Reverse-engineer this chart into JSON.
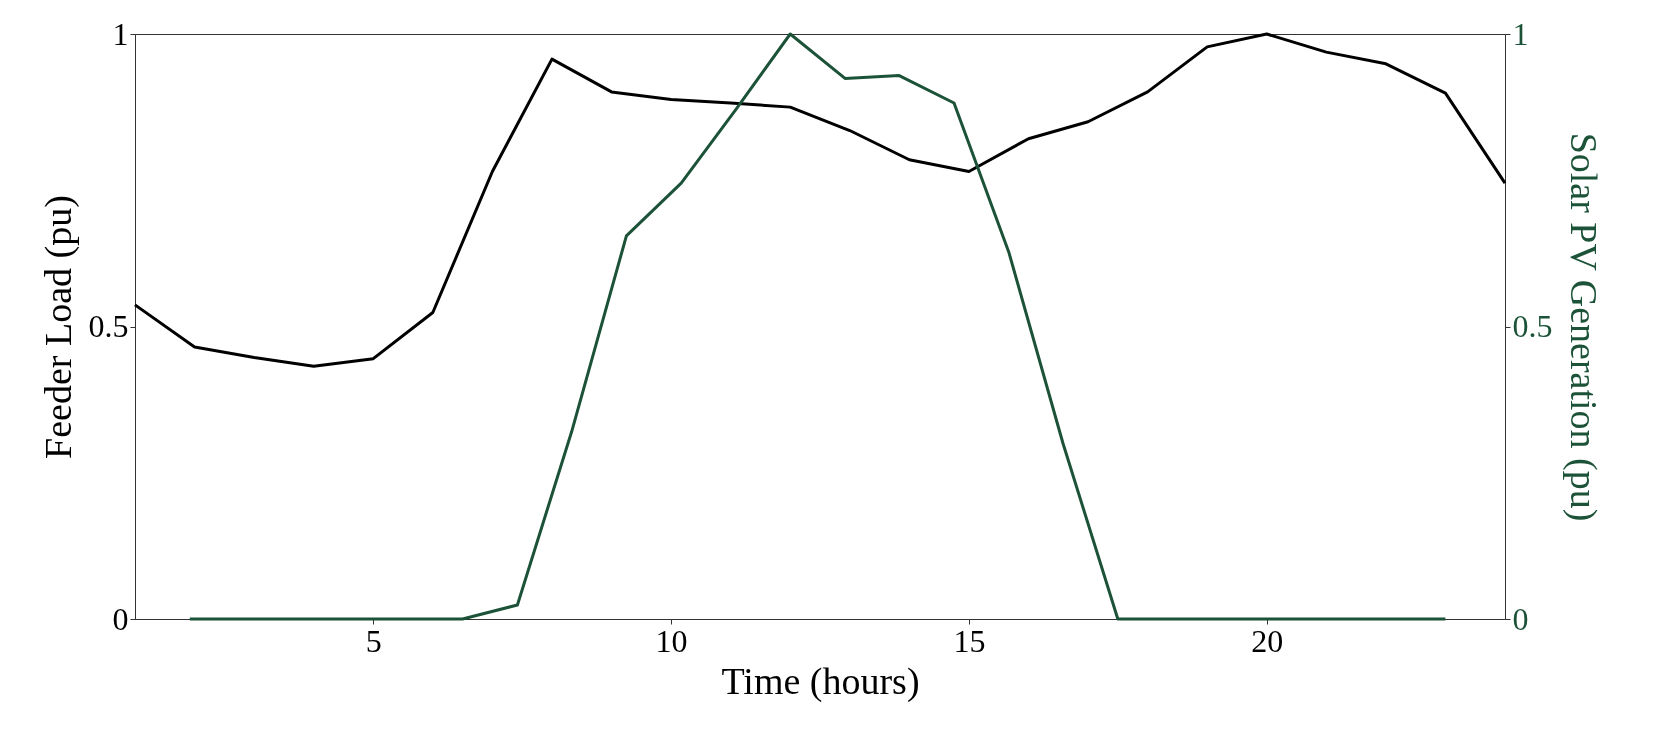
{
  "chart_data": {
    "type": "line",
    "xlabel": "Time (hours)",
    "ylabel": "Feeder Load (pu)",
    "y2label": "Solar PV Generation (pu)",
    "xlim": [
      1,
      24
    ],
    "xticks": [
      5,
      10,
      15,
      20
    ],
    "ylim": [
      0,
      1
    ],
    "yticks": [
      0,
      0.5,
      1
    ],
    "y2lim": [
      0,
      1
    ],
    "y2ticks": [
      0,
      0.5,
      1
    ],
    "grid": false,
    "series": [
      {
        "color": "#000000",
        "x": [
          1,
          2,
          3,
          4,
          5,
          6,
          7,
          8,
          9,
          10,
          11,
          12,
          13,
          14,
          15,
          16,
          17,
          18,
          19,
          20,
          21,
          22,
          23,
          24
        ],
        "values": [
          0.537,
          0.465,
          0.447,
          0.432,
          0.445,
          0.524,
          0.765,
          0.957,
          0.901,
          0.888,
          0.882,
          0.875,
          0.835,
          0.785,
          0.765,
          0.821,
          0.85,
          0.901,
          0.978,
          1.0,
          0.969,
          0.949,
          0.899,
          0.745
        ]
      },
      {
        "color": "#1b5238",
        "axis": "y2",
        "x": [
          1.92,
          2.83,
          3.75,
          4.67,
          5.58,
          6.5,
          7.42,
          8.33,
          9.25,
          10.17,
          11.08,
          12,
          12.92,
          13.83,
          14.75,
          15.67,
          16.58,
          17.5,
          18.42,
          19.33,
          20.25,
          21.17,
          22.08,
          23
        ],
        "values": [
          0,
          0,
          0,
          0,
          0,
          0,
          0.024,
          0.32,
          0.655,
          0.745,
          0.87,
          1.0,
          0.924,
          0.929,
          0.882,
          0.627,
          0.3,
          0,
          0,
          0,
          0,
          0,
          0,
          0
        ]
      }
    ]
  }
}
